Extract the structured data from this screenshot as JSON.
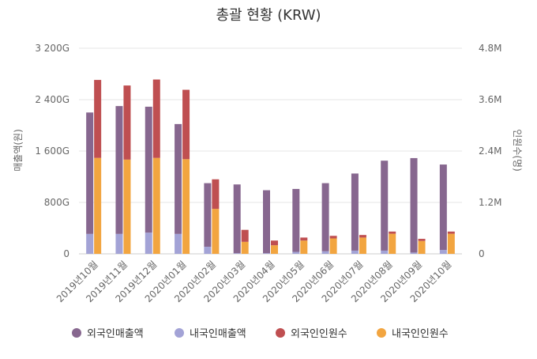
{
  "chart_data": {
    "type": "bar",
    "title": "총괄 현황 (KRW)",
    "ylabel_left": "매출액(원)",
    "ylabel_right": "인원수(명)",
    "ylim_left": [
      0,
      3200
    ],
    "ylim_right": [
      0,
      4800000
    ],
    "yticks_left": [
      "0",
      "800G",
      "1 600G",
      "2 400G",
      "3 200G"
    ],
    "yticks_right": [
      "0",
      "1.2M",
      "2.4M",
      "3.6M",
      "4.8M"
    ],
    "grid": true,
    "legend_position": "bottom",
    "categories": [
      "2019년10월",
      "2019년11월",
      "2019년12월",
      "2020년01월",
      "2020년02월",
      "2020년03월",
      "2020년04월",
      "2020년05월",
      "2020년06월",
      "2020년07월",
      "2020년08월",
      "2020년09월",
      "2020년10월"
    ],
    "stacks": [
      {
        "stack": "매출액",
        "axis": "left",
        "unit": "G원",
        "series": [
          {
            "name": "내국인매출액",
            "color": "#a3a3d6",
            "values": [
              310,
              310,
              330,
              310,
              110,
              10,
              10,
              30,
              40,
              50,
              50,
              20,
              60
            ]
          },
          {
            "name": "외국인매출액",
            "color": "#87678f",
            "values": [
              1890,
              1990,
              1960,
              1710,
              990,
              1070,
              980,
              980,
              1060,
              1200,
              1400,
              1470,
              1330
            ]
          }
        ]
      },
      {
        "stack": "인원수",
        "axis": "right",
        "unit": "명",
        "series": [
          {
            "name": "내국인인원수",
            "color": "#f2a540",
            "values": [
              2240000,
              2200000,
              2240000,
              2210000,
              1050000,
              280000,
              200000,
              310000,
              360000,
              380000,
              470000,
              300000,
              470000
            ]
          },
          {
            "name": "외국인인원수",
            "color": "#bf4f51",
            "values": [
              1820000,
              1730000,
              1830000,
              1620000,
              690000,
              280000,
              110000,
              70000,
              60000,
              60000,
              50000,
              50000,
              50000
            ]
          }
        ]
      }
    ],
    "legend": [
      {
        "name": "외국인매출액",
        "color": "#87678f"
      },
      {
        "name": "내국인매출액",
        "color": "#a3a3d6"
      },
      {
        "name": "외국인인원수",
        "color": "#bf4f51"
      },
      {
        "name": "내국인인원수",
        "color": "#f2a540"
      }
    ]
  }
}
